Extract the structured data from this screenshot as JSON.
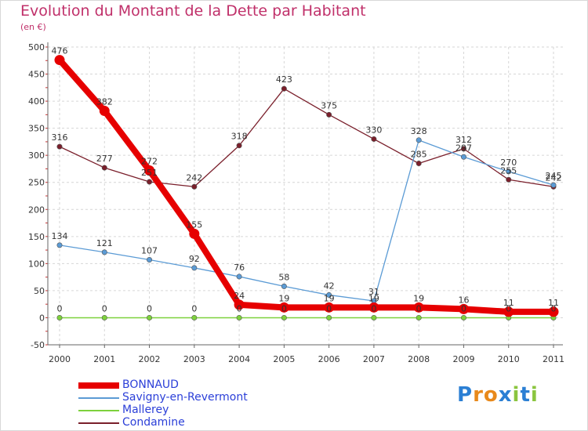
{
  "title": "Evolution du Montant de la Dette par Habitant",
  "subtitle": "(en €)",
  "logo_text": "Proxiti",
  "chart_data": {
    "type": "line",
    "title": "Evolution du Montant de la Dette par Habitant",
    "subtitle": "(en €)",
    "xlabel": "",
    "ylabel": "",
    "x": [
      "2000",
      "2001",
      "2002",
      "2003",
      "2004",
      "2005",
      "2006",
      "2007",
      "2008",
      "2009",
      "2010",
      "2011"
    ],
    "ylim": [
      -50,
      500
    ],
    "yticks": [
      -50,
      0,
      50,
      100,
      150,
      200,
      250,
      300,
      350,
      400,
      450,
      500
    ],
    "grid": true,
    "legend_position": "bottom-left",
    "series": [
      {
        "name": "BONNAUD",
        "color": "#e60000",
        "values": [
          476,
          382,
          272,
          155,
          24,
          19,
          19,
          19,
          19,
          16,
          11,
          11
        ],
        "labels": [
          "476",
          "382",
          "272",
          "155",
          "24",
          "19",
          "19",
          "19",
          "19",
          "16",
          "11",
          "11"
        ]
      },
      {
        "name": "Savigny-en-Revermont",
        "color": "#5b9bd5",
        "values": [
          134,
          121,
          107,
          92,
          76,
          58,
          42,
          31,
          328,
          297,
          270,
          245
        ],
        "labels": [
          "134",
          "121",
          "107",
          "92",
          "76",
          "58",
          "42",
          "31",
          "328",
          "297",
          "270",
          "245"
        ]
      },
      {
        "name": "Mallerey",
        "color": "#7dd13c",
        "values": [
          0,
          0,
          0,
          0,
          0,
          0,
          0,
          0,
          0,
          0,
          0,
          0
        ],
        "labels": [
          "0",
          "0",
          "0",
          "0",
          "0",
          "0",
          "0",
          "0",
          "0",
          "0",
          "0",
          "0"
        ]
      },
      {
        "name": "Condamine",
        "color": "#7a1f2b",
        "values": [
          316,
          277,
          251,
          242,
          318,
          423,
          375,
          330,
          285,
          312,
          255,
          242
        ],
        "labels": [
          "316",
          "277",
          "251",
          "242",
          "318",
          "423",
          "375",
          "330",
          "285",
          "312",
          "255",
          "242"
        ]
      }
    ]
  }
}
